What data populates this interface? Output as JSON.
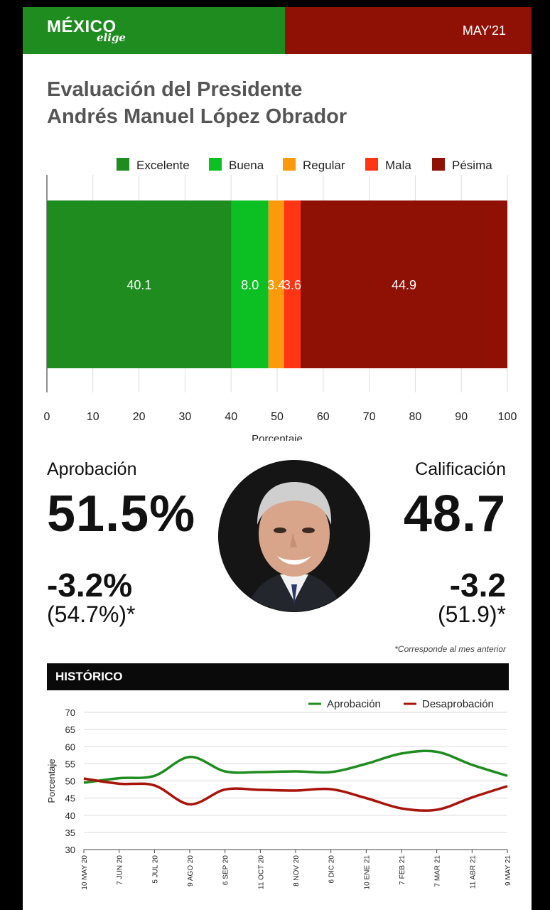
{
  "header": {
    "logo_main": "MÉXICO",
    "logo_sub": "elige",
    "date": "MAY'21",
    "colors": {
      "green": "#1e8c1e",
      "red": "#8f1106"
    }
  },
  "title": {
    "line1": "Evaluación del Presidente",
    "line2": "Andrés Manuel López Obrador"
  },
  "stats": {
    "approval_label": "Aprobación",
    "approval_value": "51.5%",
    "approval_delta": "-3.2%",
    "approval_prev": "(54.7%)*",
    "rating_label": "Calificación",
    "rating_value": "48.7",
    "rating_delta": "-3.2",
    "rating_prev": "(51.9)*",
    "footnote": "*Corresponde al mes anterior"
  },
  "history": {
    "title": "HISTÓRICO"
  },
  "chart_data": [
    {
      "type": "bar",
      "orientation": "horizontal-stacked",
      "xlabel": "Porcentaje",
      "xlim": [
        0,
        100
      ],
      "xticks": [
        0,
        10,
        20,
        30,
        40,
        50,
        60,
        70,
        80,
        90,
        100
      ],
      "legend_position": "top",
      "series": [
        {
          "name": "Excelente",
          "value": 40.1,
          "label": "40.1",
          "color": "#1e8c1e"
        },
        {
          "name": "Buena",
          "value": 8.0,
          "label": "8.0",
          "color": "#0cbf22"
        },
        {
          "name": "Regular",
          "value": 3.4,
          "label": "3.4",
          "color": "#fb9a0b"
        },
        {
          "name": "Mala",
          "value": 3.6,
          "label": "3.6",
          "color": "#ff3514"
        },
        {
          "name": "Pésima",
          "value": 44.9,
          "label": "44.9",
          "color": "#8f1106"
        }
      ]
    },
    {
      "type": "line",
      "ylabel": "Porcentaje",
      "ylim": [
        30,
        70
      ],
      "yticks": [
        30,
        35,
        40,
        45,
        50,
        55,
        60,
        65,
        70
      ],
      "grid": true,
      "legend_position": "top-right",
      "categories": [
        "10 MAY 20",
        "7 JUN 20",
        "5 JUL 20",
        "9 AGO 20",
        "6 SEP 20",
        "11 OCT 20",
        "8 NOV 20",
        "6 DIC 20",
        "10 ENE 21",
        "7 FEB 21",
        "7 MAR 21",
        "11 ABR 21",
        "9 MAY 21"
      ],
      "series": [
        {
          "name": "Aprobación",
          "color": "#1e8c1e",
          "values": [
            49.5,
            50.8,
            51.5,
            57.0,
            52.8,
            52.6,
            52.8,
            52.6,
            55.0,
            58.0,
            58.5,
            54.7,
            51.5
          ]
        },
        {
          "name": "Desaprobación",
          "color": "#a8130a",
          "values": [
            50.7,
            49.2,
            48.7,
            43.2,
            47.5,
            47.4,
            47.2,
            47.6,
            45.0,
            42.0,
            41.6,
            45.2,
            48.5
          ]
        }
      ]
    }
  ]
}
